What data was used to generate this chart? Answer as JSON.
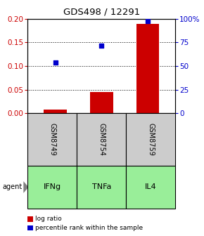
{
  "title": "GDS498 / 12291",
  "samples": [
    "GSM8749",
    "GSM8754",
    "GSM8759"
  ],
  "agents": [
    "IFNg",
    "TNFa",
    "IL4"
  ],
  "log_ratios": [
    0.008,
    0.045,
    0.19
  ],
  "percentile_pct": [
    54,
    72,
    97.5
  ],
  "ylim_left": [
    0,
    0.2
  ],
  "ylim_right": [
    0,
    100
  ],
  "yticks_left": [
    0,
    0.05,
    0.1,
    0.15,
    0.2
  ],
  "yticks_right": [
    0,
    25,
    50,
    75,
    100
  ],
  "bar_color": "#cc0000",
  "dot_color": "#0000cc",
  "sample_box_color": "#cccccc",
  "agent_box_color": "#99ee99",
  "legend_bar_label": "log ratio",
  "legend_dot_label": "percentile rank within the sample"
}
